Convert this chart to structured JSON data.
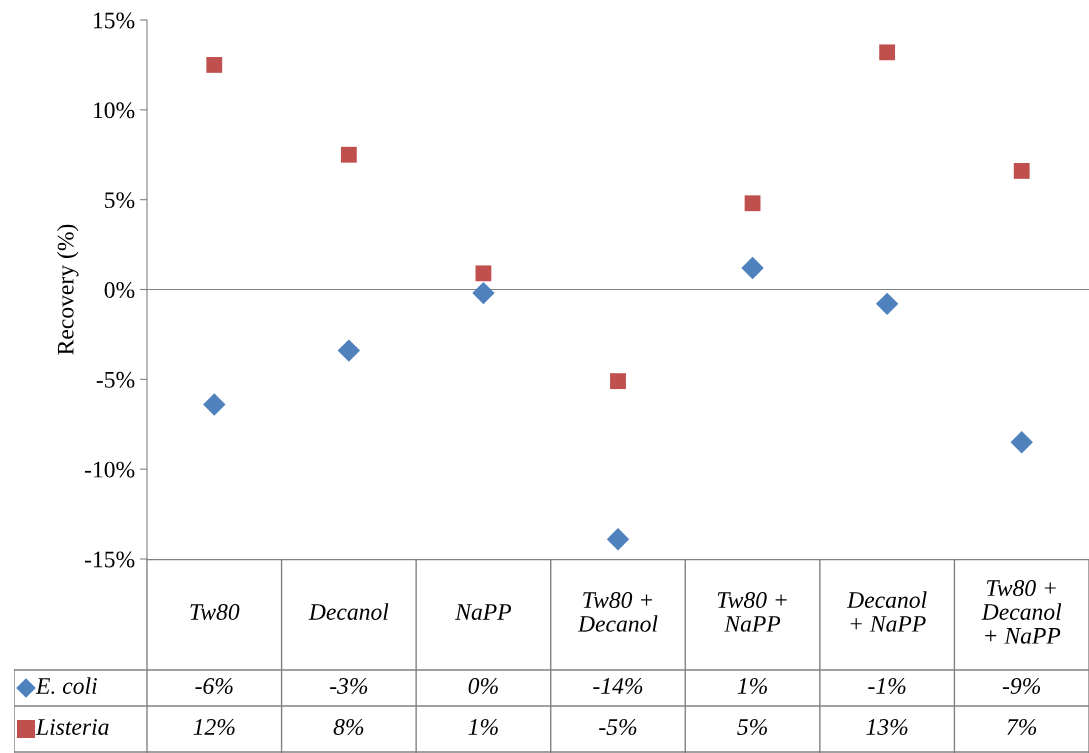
{
  "chart_data": {
    "type": "scatter",
    "ylabel": "Recovery (%)",
    "categories": [
      "Tw80",
      "Decanol",
      "NaPP",
      "Tw80 +\nDecanol",
      "Tw80 +\nNaPP",
      "Decanol\n+ NaPP",
      "Tw80 +\nDecanol\n+ NaPP"
    ],
    "series": [
      {
        "name": "E. coli",
        "color": "#4f81bd",
        "marker": "diamond",
        "values": [
          -6.4,
          -3.4,
          -0.2,
          -13.9,
          1.2,
          -0.8,
          -8.5
        ],
        "value_labels": [
          "-6%",
          "-3%",
          "0%",
          "-14%",
          "1%",
          "-1%",
          "-9%"
        ]
      },
      {
        "name": "Listeria",
        "color": "#c0504d",
        "marker": "square",
        "values": [
          12.5,
          7.5,
          0.9,
          -5.1,
          4.8,
          13.2,
          6.6
        ],
        "value_labels": [
          "12%",
          "8%",
          "1%",
          "-5%",
          "5%",
          "13%",
          "7%"
        ]
      }
    ],
    "ylim": [
      -15,
      15
    ],
    "yticks": [
      {
        "value": -15,
        "label": "-15%"
      },
      {
        "value": -10,
        "label": "-10%"
      },
      {
        "value": -5,
        "label": "-5%"
      },
      {
        "value": 0,
        "label": "0%"
      },
      {
        "value": 5,
        "label": "5%"
      },
      {
        "value": 10,
        "label": "10%"
      },
      {
        "value": 15,
        "label": "15%"
      }
    ],
    "legend": "bottom"
  }
}
